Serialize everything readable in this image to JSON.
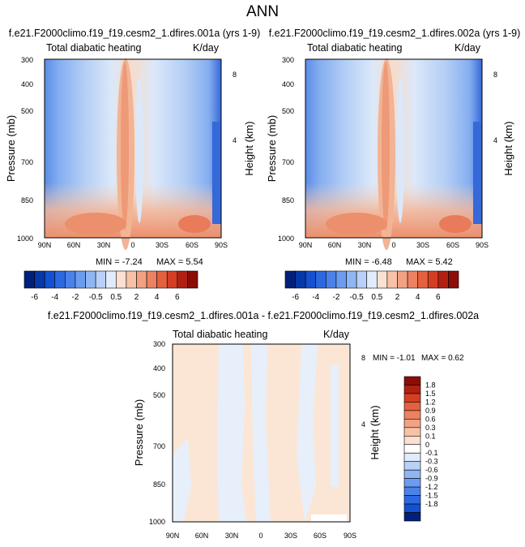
{
  "page_title": "ANN",
  "chart_data": [
    {
      "type": "heatmap",
      "title": "f.e21.F2000climo.f19_f19.cesm2_1.dfires.001a (yrs 1-9)",
      "subtitle_left": "Total diabatic heating",
      "subtitle_right": "K/day",
      "ylabel": "Pressure (mb)",
      "ylabel_right": "Height (km)",
      "y_ticks": [
        "300",
        "400",
        "500",
        "700",
        "850",
        "1000"
      ],
      "y_right_ticks": [
        "8",
        "4"
      ],
      "x_ticks": [
        "90N",
        "60N",
        "30N",
        "0",
        "30S",
        "60S",
        "90S"
      ],
      "min_label": "MIN = -7.24",
      "max_label": "MAX = 5.54",
      "colorbar_labels": [
        "-6",
        "-4",
        "-2",
        "-0.5",
        "0.5",
        "2",
        "4",
        "6"
      ]
    },
    {
      "type": "heatmap",
      "title": "f.e21.F2000climo.f19_f19.cesm2_1.dfires.002a (yrs 1-9)",
      "subtitle_left": "Total diabatic heating",
      "subtitle_right": "K/day",
      "ylabel": "Pressure (mb)",
      "ylabel_right": "Height (km)",
      "y_ticks": [
        "300",
        "400",
        "500",
        "700",
        "850",
        "1000"
      ],
      "y_right_ticks": [
        "8",
        "4"
      ],
      "x_ticks": [
        "90N",
        "60N",
        "30N",
        "0",
        "30S",
        "60S",
        "90S"
      ],
      "min_label": "MIN = -6.48",
      "max_label": "MAX = 5.42",
      "colorbar_labels": [
        "-6",
        "-4",
        "-2",
        "-0.5",
        "0.5",
        "2",
        "4",
        "6"
      ]
    },
    {
      "type": "heatmap",
      "title": "f.e21.F2000climo.f19_f19.cesm2_1.dfires.001a - f.e21.F2000climo.f19_f19.cesm2_1.dfires.002a",
      "subtitle_left": "Total diabatic heating",
      "subtitle_right": "K/day",
      "ylabel": "Pressure (mb)",
      "ylabel_right": "Height (km)",
      "y_ticks": [
        "300",
        "400",
        "500",
        "700",
        "850",
        "1000"
      ],
      "y_right_ticks": [
        "8",
        "4"
      ],
      "x_ticks": [
        "90N",
        "60N",
        "30N",
        "0",
        "30S",
        "60S",
        "90S"
      ],
      "min_label": "MIN = -1.01",
      "max_label": "MAX = 0.62",
      "colorbar_labels": [
        "1.8",
        "1.5",
        "1.2",
        "0.9",
        "0.6",
        "0.3",
        "0.1",
        "0",
        "-0.1",
        "-0.3",
        "-0.6",
        "-0.9",
        "-1.2",
        "-1.5",
        "-1.8"
      ]
    }
  ]
}
